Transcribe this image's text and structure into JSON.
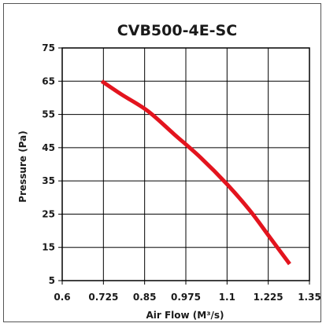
{
  "chart_data": {
    "type": "line",
    "title": "CVB500-4E-SC",
    "xlabel": "Air Flow (M³/s)",
    "ylabel": "Pressure (Pa)",
    "xlim": [
      0.6,
      1.35
    ],
    "ylim": [
      5,
      75
    ],
    "x_ticks": [
      "0.6",
      "0.725",
      "0.85",
      "0.975",
      "1.1",
      "1.225",
      "1.35"
    ],
    "y_ticks": [
      "75",
      "65",
      "55",
      "45",
      "35",
      "25",
      "15",
      "5"
    ],
    "grid": true,
    "series": [
      {
        "color": "#e3141e",
        "x": [
          0.72,
          0.78,
          0.86,
          0.94,
          1.02,
          1.1,
          1.17,
          1.23,
          1.29
        ],
        "y": [
          65,
          61,
          56,
          49,
          42,
          34,
          26,
          18,
          10
        ]
      }
    ]
  }
}
